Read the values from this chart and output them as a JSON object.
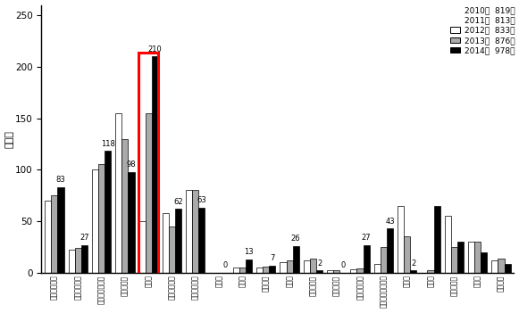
{
  "ylabel": "（人）",
  "ylim": [
    0,
    260
  ],
  "yticks": [
    0,
    50,
    100,
    150,
    200,
    250
  ],
  "categories": [
    "急性心筋梗塞",
    "不安定狭心症",
    "陳旧性心筋梗塞",
    "安定狭心症",
    "心不全",
    "徐脈性不整脈",
    "頻脈性不整脈",
    "心筋炎",
    "弁膜症",
    "心膜疾患",
    "腎疾患",
    "大動脈疾患",
    "内分泌疾患",
    "末梢動脈疾患",
    "肺高血圧・索柱症",
    "感染症",
    "膵原病",
    "呼吸器疾患",
    "その他",
    "失神精査"
  ],
  "series": {
    "2012": {
      "color": "#ffffff",
      "edgecolor": "#000000",
      "values": [
        70,
        22,
        100,
        155,
        50,
        58,
        80,
        0,
        5,
        5,
        10,
        12,
        2,
        3,
        8,
        65,
        0,
        55,
        30,
        12
      ]
    },
    "2013": {
      "color": "#aaaaaa",
      "edgecolor": "#000000",
      "values": [
        75,
        24,
        105,
        130,
        155,
        45,
        80,
        0,
        5,
        6,
        12,
        14,
        2,
        4,
        25,
        35,
        2,
        25,
        30,
        14
      ]
    },
    "2014": {
      "color": "#000000",
      "edgecolor": "#000000",
      "values": [
        83,
        27,
        118,
        98,
        210,
        62,
        63,
        0,
        13,
        7,
        26,
        2,
        0,
        27,
        43,
        2,
        65,
        30,
        20,
        8
      ]
    }
  },
  "annot_values": [
    83,
    27,
    118,
    98,
    210,
    62,
    63,
    0,
    13,
    7,
    26,
    2,
    0,
    27,
    43,
    2,
    65,
    30,
    20,
    8
  ],
  "annot_labels": [
    "83",
    "27",
    "118",
    "98",
    "210",
    "62",
    "63",
    "0",
    "13",
    "7",
    "26",
    "2",
    "0",
    "27",
    "43",
    "2",
    "",
    "",
    "",
    ""
  ],
  "annot_use_max": [
    false,
    false,
    false,
    false,
    false,
    false,
    false,
    false,
    false,
    false,
    false,
    false,
    false,
    false,
    false,
    false,
    false,
    false,
    false,
    false
  ],
  "legend_text_only": [
    "2010年  819名",
    "2011年  813名"
  ],
  "legend_with_patch": [
    {
      "label": "2012年  833名",
      "color": "#ffffff"
    },
    {
      "label": "2013年  876名",
      "color": "#aaaaaa"
    },
    {
      "label": "2014年  978名",
      "color": "#000000"
    }
  ],
  "highlight_cat_idx": 4,
  "background_color": "#ffffff"
}
